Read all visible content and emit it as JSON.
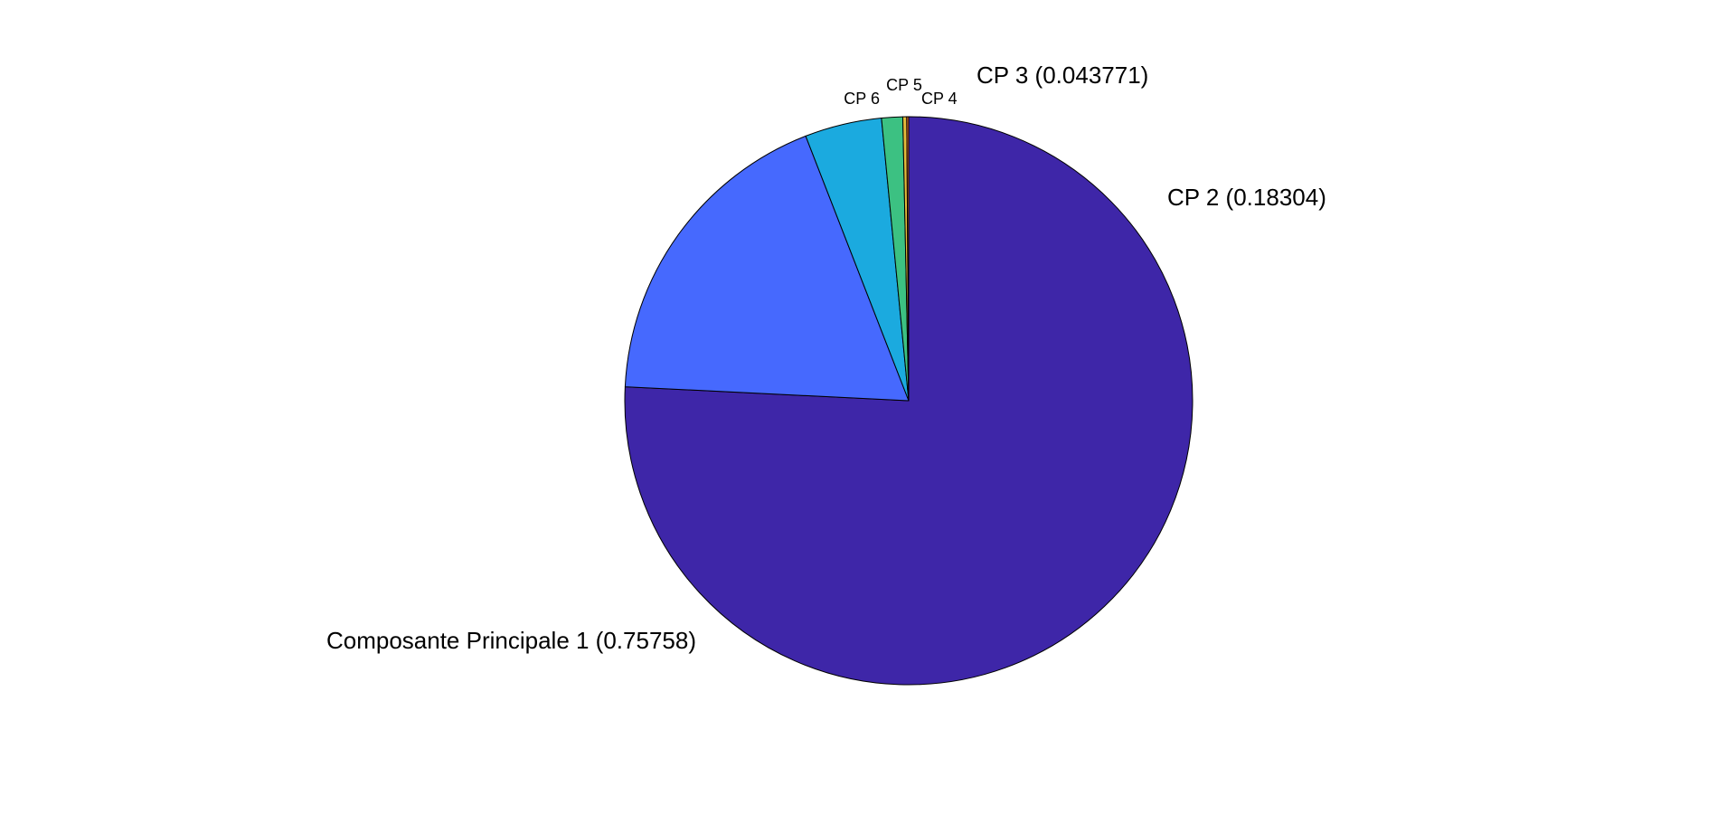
{
  "chart_data": {
    "type": "pie",
    "title": "",
    "slices": [
      {
        "label": "Composante Principale 1 (0.75758)",
        "value": 0.75758,
        "color": "#3E26A8"
      },
      {
        "label": "CP 2 (0.18304)",
        "value": 0.18304,
        "color": "#4669FE"
      },
      {
        "label": "CP 3 (0.043771)",
        "value": 0.043771,
        "color": "#1BAADF"
      },
      {
        "label": "CP 4",
        "value": 0.012,
        "color": "#3CC182"
      },
      {
        "label": "CP 5",
        "value": 0.0022,
        "color": "#E4BA3C"
      },
      {
        "label": "CP 6",
        "value": 0.0011,
        "color": "#E06A2A"
      }
    ],
    "start": "12 o'clock",
    "direction": "clockwise",
    "legend": "none",
    "edge_color": "#000000"
  }
}
